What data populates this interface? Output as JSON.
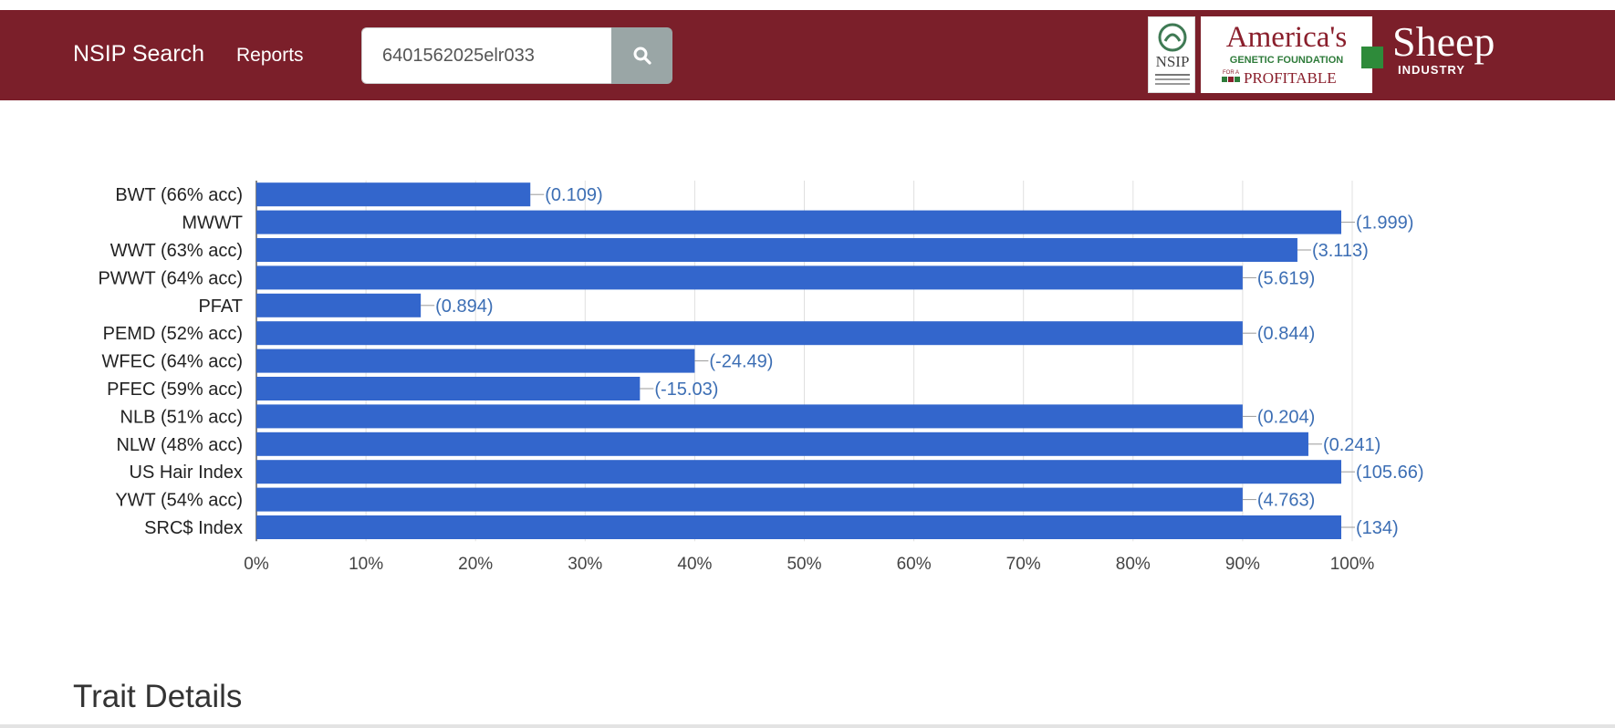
{
  "navbar": {
    "brand": "NSIP Search",
    "reports_link": "Reports",
    "search_value": "6401562025elr033",
    "background_color": "#7b1f2a"
  },
  "logos": {
    "nsip_text": "NSIP",
    "america_title": "America's",
    "america_subtitle": "GENETIC FOUNDATION",
    "america_for_a": "FOR A",
    "america_profitable": "PROFITABLE",
    "sheep": "Sheep",
    "industry": "INDUSTRY"
  },
  "chart_data": {
    "type": "bar",
    "orientation": "horizontal",
    "bar_color": "#3366cc",
    "label_color": "#3c6eb4",
    "categories": [
      "BWT (66% acc)",
      "MWWT",
      "WWT (63% acc)",
      "PWWT (64% acc)",
      "PFAT",
      "PEMD (52% acc)",
      "WFEC (64% acc)",
      "PFEC (59% acc)",
      "NLB (51% acc)",
      "NLW (48% acc)",
      "US Hair Index",
      "YWT (54% acc)",
      "SRC$ Index"
    ],
    "values": [
      25,
      99,
      95,
      90,
      15,
      90,
      40,
      35,
      90,
      96,
      99,
      90,
      99
    ],
    "value_labels": [
      "(0.109)",
      "(1.999)",
      "(3.113)",
      "(5.619)",
      "(0.894)",
      "(0.844)",
      "(-24.49)",
      "(-15.03)",
      "(0.204)",
      "(0.241)",
      "(105.66)",
      "(4.763)",
      "(134)"
    ],
    "xlim": [
      0,
      100
    ],
    "x_ticks": [
      "0%",
      "10%",
      "20%",
      "30%",
      "40%",
      "50%",
      "60%",
      "70%",
      "80%",
      "90%",
      "100%"
    ],
    "grid": true
  },
  "section": {
    "trait_details_heading": "Trait Details"
  }
}
